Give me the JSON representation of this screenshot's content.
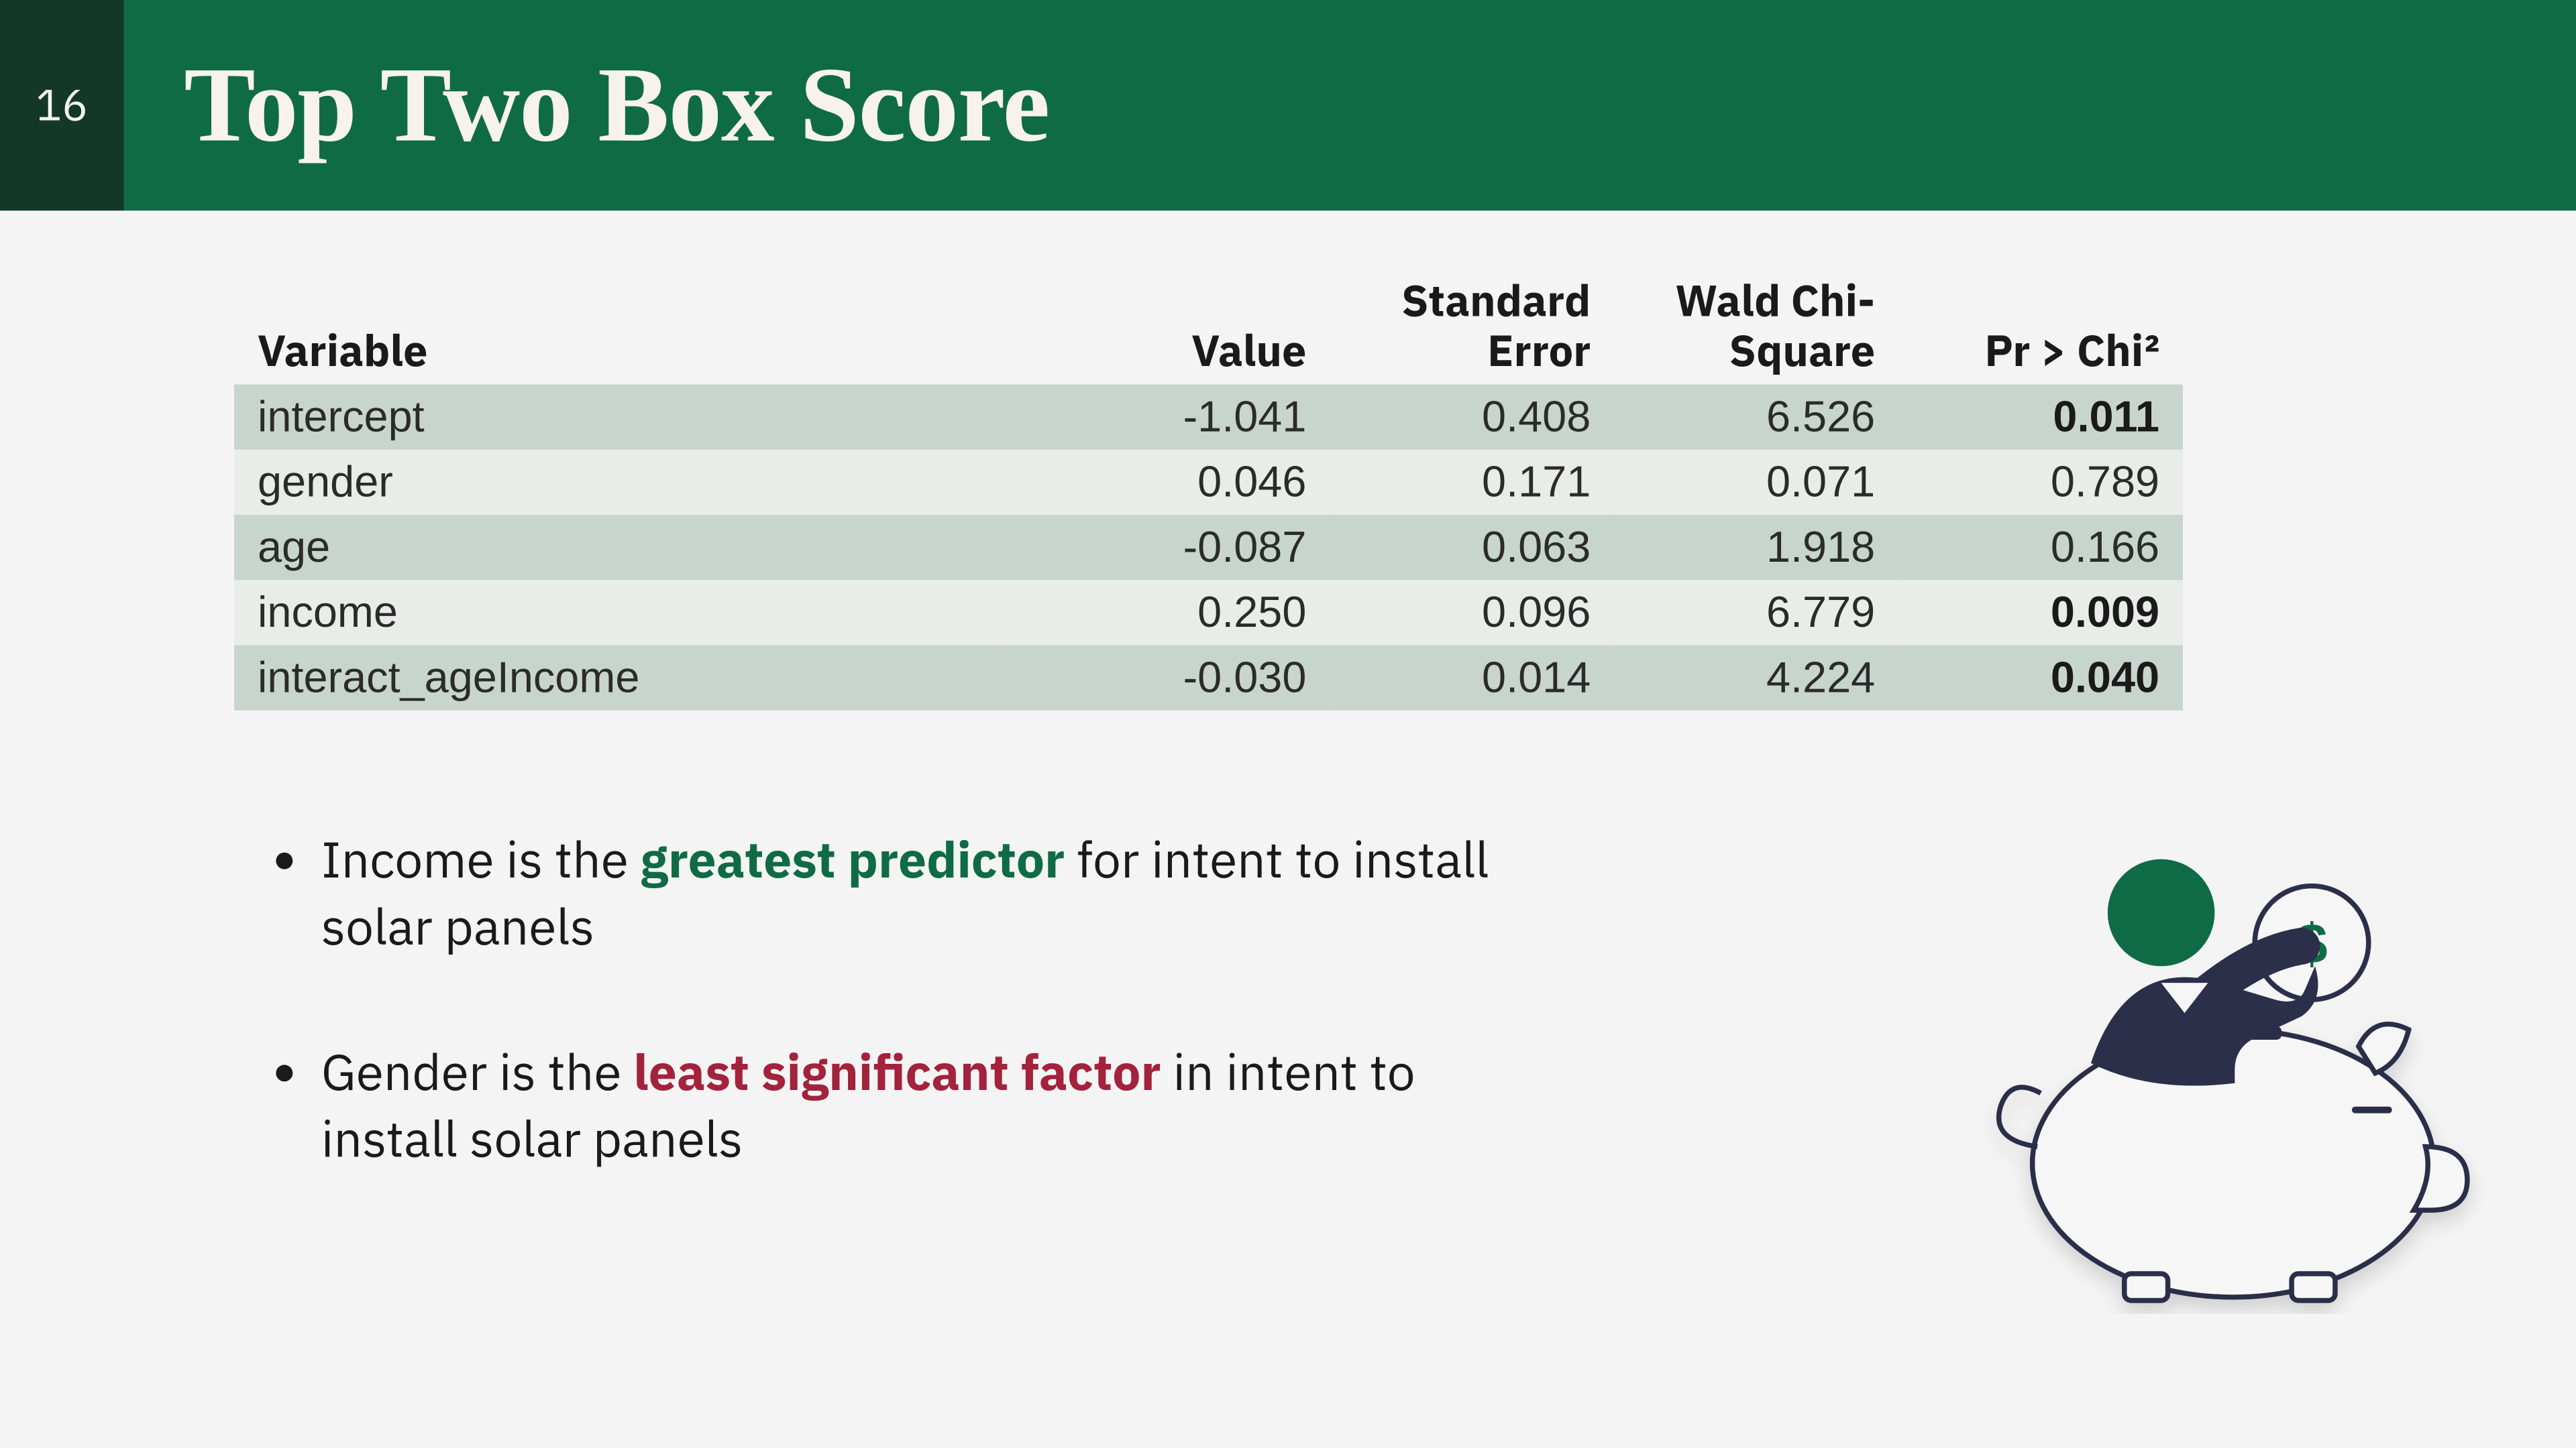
{
  "page_number": "16",
  "title": "Top Two Box Score",
  "colors": {
    "header_bg": "#0f6b46",
    "page_box_bg": "#133827",
    "slide_bg": "#f4f4f4",
    "row_band_a": "#c8d5cc",
    "row_band_b": "#e9ede8",
    "highlight_pos": "#0f6b46",
    "highlight_neg": "#a3223c",
    "text": "#1a1a1a",
    "illus_body": "#2b2f4a",
    "illus_head": "#0f6b46",
    "illus_pig_fill": "#f6f6f6",
    "illus_stroke": "#2b2f4a"
  },
  "table": {
    "columns": [
      "Variable",
      "Value",
      "Standard Error",
      "Wald Chi-Square",
      "Pr > Chi²"
    ],
    "rows": [
      {
        "variable": "intercept",
        "value": "-1.041",
        "stderr": "0.408",
        "wald": "6.526",
        "pr": "0.011",
        "pr_bold": true
      },
      {
        "variable": "gender",
        "value": "0.046",
        "stderr": "0.171",
        "wald": "0.071",
        "pr": "0.789",
        "pr_bold": false
      },
      {
        "variable": "age",
        "value": "-0.087",
        "stderr": "0.063",
        "wald": "1.918",
        "pr": "0.166",
        "pr_bold": false
      },
      {
        "variable": "income",
        "value": "0.250",
        "stderr": "0.096",
        "wald": "6.779",
        "pr": "0.009",
        "pr_bold": true
      },
      {
        "variable": "interact_ageIncome",
        "value": "-0.030",
        "stderr": "0.014",
        "wald": "4.224",
        "pr": "0.040",
        "pr_bold": true
      }
    ]
  },
  "bullets": {
    "b1_pre": "Income is the ",
    "b1_hl": "greatest predictor",
    "b1_post": " for intent to install solar panels",
    "b2_pre": "Gender is the ",
    "b2_hl": "least significant factor",
    "b2_post": " in intent to install solar panels"
  },
  "illustration": {
    "type": "infographic-icon",
    "description": "person with green head sitting on piggy bank inserting a coin with $",
    "coin_symbol": "$"
  }
}
